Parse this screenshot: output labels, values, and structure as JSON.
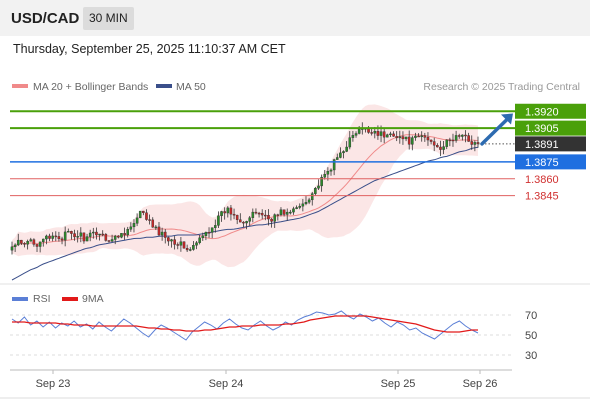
{
  "header": {
    "symbol": "USD/CAD",
    "timeframe": "30 MIN",
    "datetime": "Thursday, September 25, 2025 11:10:37 AM CET"
  },
  "colors": {
    "background": "#ffffff",
    "candle_up": "#2a8a2a",
    "candle_down": "#c62828",
    "band_fill": "#fadcdc",
    "ma20": "#f08a8a",
    "ma50": "#3a4f8a",
    "target_line": "#4aa00a",
    "pivot_line": "#1f6fe0",
    "support_line": "#e06060",
    "current_label": "#333333",
    "arrow": "#2d6bb0",
    "rsi": "#5b7fd6",
    "rsi_ma": "#e21a1a",
    "grid": "#e8e8e8",
    "axis_text": "#444444",
    "source_text": "#999999"
  },
  "chart_data": [
    {
      "type": "candlestick",
      "title": "",
      "legend": {
        "position": "top-left",
        "items": [
          {
            "label": "MA 20 + Bollinger Bands",
            "color": "#f08a8a"
          },
          {
            "label": "MA 50",
            "color": "#3a4f8a"
          }
        ]
      },
      "source": "Research © 2025 Trading Central",
      "x_ticks": [
        "Sep 23",
        "Sep 24",
        "Sep 25",
        "Sep 26"
      ],
      "y_range": [
        1.377,
        1.393
      ],
      "grid": false,
      "price_series": [
        1.3799,
        1.3803,
        1.38,
        1.3806,
        1.3802,
        1.3808,
        1.3805,
        1.381,
        1.3807,
        1.3812,
        1.3808,
        1.3811,
        1.3806,
        1.381,
        1.3813,
        1.3809,
        1.3805,
        1.3808,
        1.3812,
        1.3815,
        1.382,
        1.383,
        1.3825,
        1.3817,
        1.3812,
        1.3809,
        1.3806,
        1.3803,
        1.38,
        1.3796,
        1.3802,
        1.3808,
        1.3814,
        1.382,
        1.3827,
        1.3833,
        1.3829,
        1.3825,
        1.3822,
        1.3826,
        1.3831,
        1.3828,
        1.3824,
        1.3827,
        1.3831,
        1.3829,
        1.3832,
        1.3836,
        1.3841,
        1.3848,
        1.3855,
        1.3862,
        1.387,
        1.3878,
        1.3886,
        1.3894,
        1.39,
        1.3904,
        1.3902,
        1.3903,
        1.39,
        1.3897,
        1.3901,
        1.3898,
        1.3895,
        1.3893,
        1.3896,
        1.3898,
        1.3894,
        1.3891,
        1.3888,
        1.3892,
        1.3896,
        1.3899,
        1.3896,
        1.3893,
        1.3891
      ],
      "ma50": [
        1.377,
        1.3773,
        1.3776,
        1.3779,
        1.3781,
        1.3784,
        1.3786,
        1.3788,
        1.379,
        1.3792,
        1.3794,
        1.3796,
        1.3798,
        1.3799,
        1.3801,
        1.3802,
        1.3803,
        1.3804,
        1.3805,
        1.3806,
        1.3807,
        1.3807,
        1.3808,
        1.3808,
        1.3809,
        1.3809,
        1.3809,
        1.381,
        1.381,
        1.381,
        1.381,
        1.3811,
        1.3812,
        1.3813,
        1.3814,
        1.3815,
        1.3815,
        1.3816,
        1.3817,
        1.3818,
        1.3819,
        1.3819,
        1.382,
        1.3821,
        1.3822,
        1.3823,
        1.3824,
        1.3825,
        1.3827,
        1.3829,
        1.3831,
        1.3834,
        1.3837,
        1.384,
        1.3843,
        1.3846,
        1.3849,
        1.3852,
        1.3855,
        1.3858,
        1.386,
        1.3862,
        1.3864,
        1.3866,
        1.3868,
        1.387,
        1.3872,
        1.3874,
        1.3876,
        1.3877,
        1.3879,
        1.388,
        1.3882,
        1.3884,
        1.3885,
        1.3887,
        1.3888
      ],
      "levels": [
        {
          "value": "1.3920",
          "kind": "target"
        },
        {
          "value": "1.3905",
          "kind": "target"
        },
        {
          "value": "1.3891",
          "kind": "current"
        },
        {
          "value": "1.3875",
          "kind": "pivot"
        },
        {
          "value": "1.3860",
          "kind": "support"
        },
        {
          "value": "1.3845",
          "kind": "support"
        }
      ],
      "arrow": {
        "direction": "up",
        "from": 1.3891,
        "to": 1.3918
      }
    },
    {
      "type": "line",
      "title": "",
      "legend": {
        "position": "top-left",
        "items": [
          {
            "label": "RSI",
            "color": "#5b7fd6"
          },
          {
            "label": "9MA",
            "color": "#e21a1a"
          }
        ]
      },
      "y_range": [
        20,
        80
      ],
      "y_ticks": [
        "70",
        "50",
        "30"
      ],
      "rsi": [
        66,
        62,
        68,
        60,
        64,
        58,
        63,
        57,
        62,
        59,
        64,
        58,
        61,
        56,
        63,
        58,
        54,
        60,
        66,
        62,
        57,
        52,
        48,
        55,
        60,
        57,
        53,
        49,
        45,
        53,
        58,
        63,
        60,
        56,
        62,
        66,
        61,
        57,
        55,
        60,
        64,
        59,
        55,
        58,
        63,
        60,
        65,
        68,
        70,
        73,
        72,
        70,
        71,
        74,
        69,
        66,
        71,
        68,
        64,
        67,
        62,
        58,
        63,
        60,
        55,
        57,
        52,
        49,
        46,
        51,
        56,
        61,
        64,
        59,
        55,
        52
      ],
      "rsi_ma": [
        63,
        63,
        63,
        62,
        62,
        62,
        62,
        62,
        61,
        61,
        60,
        60,
        60,
        59,
        59,
        59,
        59,
        59,
        59,
        59,
        59,
        58,
        57,
        57,
        56,
        56,
        55,
        55,
        54,
        54,
        54,
        55,
        55,
        56,
        57,
        58,
        58,
        59,
        59,
        59,
        60,
        60,
        60,
        60,
        61,
        61,
        62,
        63,
        65,
        66,
        67,
        68,
        69,
        69,
        69,
        69,
        69,
        69,
        68,
        67,
        66,
        65,
        64,
        63,
        62,
        61,
        59,
        57,
        55,
        54,
        53,
        53,
        53,
        54,
        55,
        55
      ]
    }
  ]
}
